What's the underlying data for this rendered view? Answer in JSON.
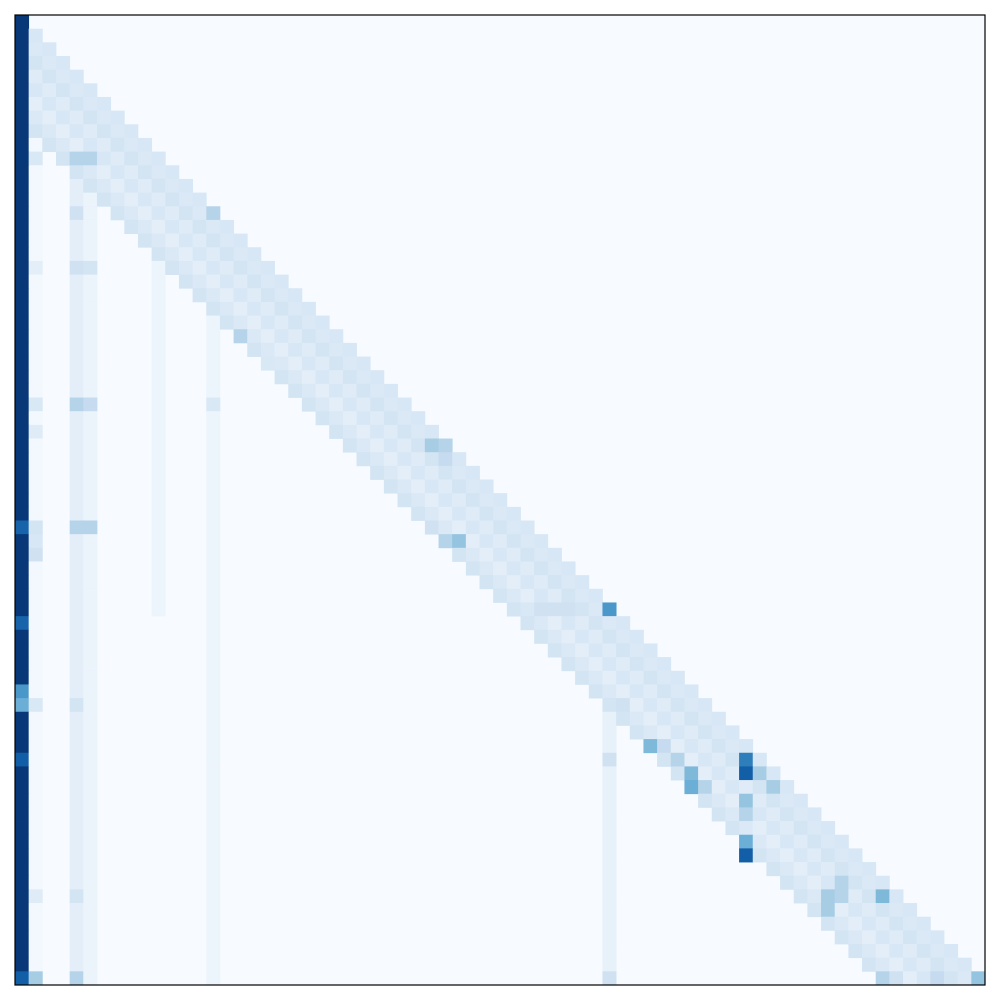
{
  "chart_data": {
    "type": "heatmap",
    "rows": 71,
    "cols": 71,
    "value_range": [
      0,
      1
    ],
    "mask": "lower-triangular",
    "colormap": "Blues",
    "colormap_stops": [
      "#f7fbff",
      "#deebf7",
      "#c6dbef",
      "#9ecae1",
      "#6baed6",
      "#4292c6",
      "#2171b5",
      "#08519c",
      "#08306b"
    ],
    "cells": {
      "col_0": {
        "base": 0.97,
        "overrides": {
          "37": 0.8,
          "44": 0.8,
          "49": 0.6,
          "50": 0.5,
          "54": 0.82,
          "70": 0.82
        }
      },
      "col_1": {
        "base": 0.0,
        "overrides": {
          "1": 0.1,
          "10": 0.15,
          "18": 0.1,
          "28": 0.15,
          "30": 0.12,
          "37": 0.18,
          "38": 0.16,
          "39": 0.2,
          "50": 0.15,
          "64": 0.12,
          "70": 0.35
        }
      },
      "columns_bands": [
        {
          "col": 4,
          "from": 4,
          "to": 70,
          "value": 0.1,
          "overrides": {
            "10": 0.3,
            "14": 0.2,
            "18": 0.2,
            "28": 0.3,
            "37": 0.3,
            "50": 0.18,
            "64": 0.18,
            "70": 0.3
          }
        },
        {
          "col": 5,
          "from": 5,
          "to": 70,
          "value": 0.06,
          "overrides": {
            "10": 0.3,
            "18": 0.18,
            "28": 0.25,
            "37": 0.3
          }
        },
        {
          "col": 10,
          "from": 10,
          "to": 43,
          "value": 0.05
        },
        {
          "col": 14,
          "from": 14,
          "to": 70,
          "value": 0.05,
          "overrides": {
            "14": 0.3,
            "18": 0.15,
            "28": 0.15
          }
        },
        {
          "col": 43,
          "from": 43,
          "to": 70,
          "value": 0.08,
          "overrides": {
            "43": 0.6,
            "50": 0.15,
            "54": 0.2,
            "70": 0.2
          }
        }
      ],
      "diagonal_band_width": 7,
      "diagonal_base": 0.1,
      "hotspots": [
        {
          "r": 23,
          "c": 16,
          "v": 0.3
        },
        {
          "r": 25,
          "c": 18,
          "v": 0.15
        },
        {
          "r": 31,
          "c": 31,
          "v": 0.3
        },
        {
          "r": 32,
          "c": 31,
          "v": 0.25
        },
        {
          "r": 37,
          "c": 30,
          "v": 0.2
        },
        {
          "r": 38,
          "c": 31,
          "v": 0.3
        },
        {
          "r": 43,
          "c": 37,
          "v": 0.15
        },
        {
          "r": 43,
          "c": 38,
          "v": 0.2
        },
        {
          "r": 43,
          "c": 39,
          "v": 0.2
        },
        {
          "r": 43,
          "c": 40,
          "v": 0.2
        },
        {
          "r": 50,
          "c": 44,
          "v": 0.2
        },
        {
          "r": 53,
          "c": 46,
          "v": 0.45
        },
        {
          "r": 53,
          "c": 47,
          "v": 0.25
        },
        {
          "r": 54,
          "c": 48,
          "v": 0.3
        },
        {
          "r": 55,
          "c": 49,
          "v": 0.45
        },
        {
          "r": 56,
          "c": 49,
          "v": 0.5
        },
        {
          "r": 56,
          "c": 50,
          "v": 0.3
        },
        {
          "r": 54,
          "c": 53,
          "v": 0.7
        },
        {
          "r": 55,
          "c": 53,
          "v": 0.82
        },
        {
          "r": 55,
          "c": 54,
          "v": 0.35
        },
        {
          "r": 56,
          "c": 55,
          "v": 0.35
        },
        {
          "r": 57,
          "c": 53,
          "v": 0.4
        },
        {
          "r": 58,
          "c": 53,
          "v": 0.3
        },
        {
          "r": 60,
          "c": 53,
          "v": 0.5
        },
        {
          "r": 61,
          "c": 53,
          "v": 0.82
        },
        {
          "r": 63,
          "c": 60,
          "v": 0.3
        },
        {
          "r": 64,
          "c": 59,
          "v": 0.35
        },
        {
          "r": 64,
          "c": 60,
          "v": 0.3
        },
        {
          "r": 64,
          "c": 63,
          "v": 0.45
        },
        {
          "r": 65,
          "c": 59,
          "v": 0.35
        },
        {
          "r": 70,
          "c": 63,
          "v": 0.3
        },
        {
          "r": 70,
          "c": 64,
          "v": 0.2
        },
        {
          "r": 70,
          "c": 67,
          "v": 0.25
        },
        {
          "r": 70,
          "c": 70,
          "v": 0.4
        },
        {
          "r": 14,
          "c": 16,
          "v": 0.0
        }
      ],
      "diagonal_peaks": [
        {
          "r": 43,
          "c": 43,
          "v": 0.6
        },
        {
          "r": 31,
          "c": 30,
          "v": 0.35
        },
        {
          "r": 38,
          "c": 32,
          "v": 0.4
        },
        {
          "r": 14,
          "c": 14,
          "v": 0.3
        }
      ]
    },
    "grid": false,
    "axes_visible": false,
    "title": "",
    "xlabel": "",
    "ylabel": "",
    "legend": false
  }
}
